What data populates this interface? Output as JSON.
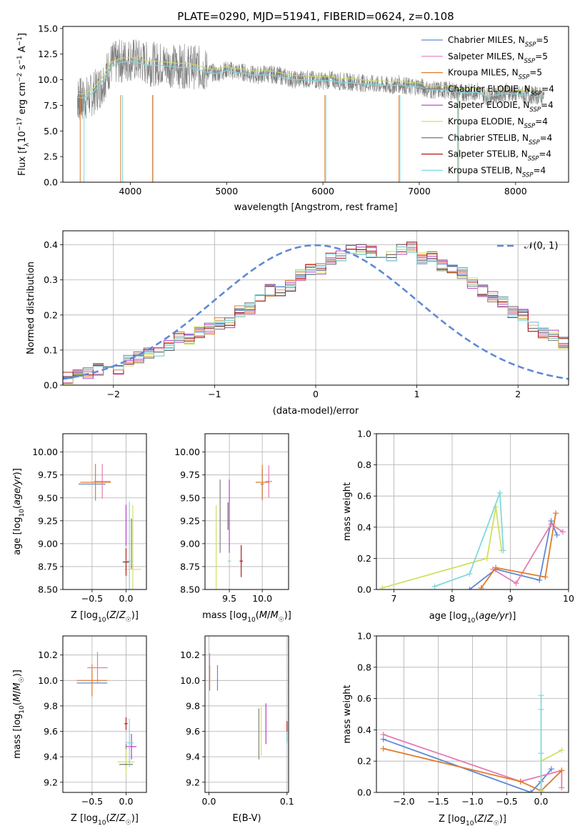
{
  "figure_title": "PLATE=0290, MJD=51941, FIBERID=0624, z=0.108",
  "colors": {
    "Chabrier MILES": "#5f89d6",
    "Salpeter MILES": "#e57bb2",
    "Kroupa MILES": "#e07b2a",
    "Chabrier ELODIE": "#808080",
    "Salpeter ELODIE": "#b53bc9",
    "Kroupa ELODIE": "#cfe060",
    "Chabrier STELIB": "#666666",
    "Salpeter STELIB": "#b01b1b",
    "Kroupa STELIB": "#7fd9dc",
    "gauss": "#5f89d6",
    "grid": "#b0b0b0",
    "spectrum_gray": "#7f7f7f"
  },
  "chart_data": [
    {
      "id": "spectrum",
      "type": "line",
      "title": "PLATE=0290, MJD=51941, FIBERID=0624, z=0.108",
      "xlabel": "wavelength [Angstrom, rest frame]",
      "ylabel": "Flux [f_λ 10^-17 erg cm^-2 s^-1 A^-1]",
      "xlim": [
        3300,
        8550
      ],
      "ylim": [
        0,
        15.2
      ],
      "xticks": [
        "4000",
        "5000",
        "6000",
        "7000",
        "8000"
      ],
      "yticks": [
        "0.0",
        "2.5",
        "5.0",
        "7.5",
        "10.0",
        "12.5",
        "15.0"
      ],
      "grid": false,
      "legend_position": "top-right",
      "data_x": [
        3450,
        3500,
        3600,
        3700,
        3800,
        3900,
        4000,
        4100,
        4200,
        4300,
        4400,
        4500,
        4600,
        4700,
        4800,
        4900,
        5000,
        5100,
        5200,
        5300,
        5400,
        5500,
        5600,
        5700,
        5800,
        5900,
        6000,
        6100,
        6200,
        6300,
        6400,
        6500,
        6600,
        6700,
        6800,
        6900,
        7000,
        7100,
        7200,
        7300,
        7400,
        7500,
        7600,
        7700,
        7800,
        7900,
        8000,
        8100,
        8200,
        8300
      ],
      "data_y": [
        8.2,
        8.0,
        8.5,
        9.5,
        11.5,
        11.8,
        12.0,
        11.8,
        11.5,
        11.6,
        11.4,
        11.3,
        11.3,
        11.2,
        10.8,
        10.6,
        11.0,
        10.8,
        10.7,
        10.4,
        10.6,
        10.5,
        10.3,
        10.0,
        10.1,
        10.0,
        9.9,
        10.0,
        9.8,
        9.8,
        9.7,
        9.6,
        9.5,
        9.4,
        9.6,
        9.3,
        9.4,
        9.0,
        9.0,
        9.0,
        8.8,
        8.7,
        8.9,
        8.4,
        8.5,
        8.8,
        8.6,
        8.5,
        8.5,
        8.4
      ],
      "model_y": [
        8.3,
        8.2,
        8.6,
        9.7,
        11.3,
        11.7,
        11.8,
        11.6,
        11.4,
        11.4,
        11.3,
        11.2,
        11.2,
        11.0,
        10.7,
        10.6,
        10.9,
        10.7,
        10.6,
        10.4,
        10.5,
        10.4,
        10.2,
        10.0,
        10.0,
        9.9,
        9.9,
        9.9,
        9.7,
        9.7,
        9.6,
        9.5,
        9.5,
        9.4,
        9.5,
        9.3,
        9.3,
        9.0,
        9.0,
        9.0,
        8.8,
        8.7,
        8.8,
        8.4,
        8.5,
        8.7,
        8.6,
        8.5,
        8.5,
        8.4
      ],
      "drop_lines_x": [
        3480,
        3520,
        3900,
        3920,
        4230,
        4240,
        6020,
        6030,
        6790,
        6800,
        7400,
        7410
      ],
      "legend": [
        {
          "label": "Chabrier MILES, N",
          "sub": "SSP",
          "suffix": "=5",
          "color_key": "Chabrier MILES"
        },
        {
          "label": "Salpeter MILES, N",
          "sub": "SSP",
          "suffix": "=5",
          "color_key": "Salpeter MILES"
        },
        {
          "label": "Kroupa MILES, N",
          "sub": "SSP",
          "suffix": "=5",
          "color_key": "Kroupa MILES"
        },
        {
          "label": "Chabrier ELODIE, N",
          "sub": "SSP",
          "suffix": "=4",
          "color_key": "Chabrier ELODIE"
        },
        {
          "label": "Salpeter ELODIE, N",
          "sub": "SSP",
          "suffix": "=4",
          "color_key": "Salpeter ELODIE"
        },
        {
          "label": "Kroupa ELODIE, N",
          "sub": "SSP",
          "suffix": "=4",
          "color_key": "Kroupa ELODIE"
        },
        {
          "label": "Chabrier STELIB, N",
          "sub": "SSP",
          "suffix": "=4",
          "color_key": "Chabrier STELIB"
        },
        {
          "label": "Salpeter STELIB, N",
          "sub": "SSP",
          "suffix": "=4",
          "color_key": "Salpeter STELIB"
        },
        {
          "label": "Kroupa STELIB, N",
          "sub": "SSP",
          "suffix": "=4",
          "color_key": "Kroupa STELIB"
        }
      ]
    },
    {
      "id": "residuals",
      "type": "line",
      "xlabel": "(data-model)/error",
      "ylabel": "Normed distribution",
      "xlim": [
        -2.5,
        2.5
      ],
      "ylim": [
        0,
        0.44
      ],
      "xticks": [
        "−2",
        "−1",
        "0",
        "1",
        "2"
      ],
      "yticks": [
        "0.0",
        "0.1",
        "0.2",
        "0.3",
        "0.4"
      ],
      "grid": true,
      "legend_position": "top-right",
      "legend_label": "𝒩(0, 1)",
      "bin_width": 0.1,
      "bin_start": -2.5,
      "histogram_values": [
        0.02,
        0.03,
        0.035,
        0.045,
        0.06,
        0.045,
        0.07,
        0.08,
        0.09,
        0.1,
        0.11,
        0.135,
        0.13,
        0.15,
        0.16,
        0.175,
        0.18,
        0.21,
        0.22,
        0.245,
        0.27,
        0.27,
        0.285,
        0.315,
        0.33,
        0.33,
        0.36,
        0.37,
        0.39,
        0.385,
        0.38,
        0.38,
        0.37,
        0.39,
        0.395,
        0.36,
        0.37,
        0.34,
        0.33,
        0.32,
        0.29,
        0.27,
        0.25,
        0.24,
        0.21,
        0.2,
        0.17,
        0.15,
        0.14,
        0.12,
        0.11,
        0.095,
        0.085,
        0.075,
        0.06,
        0.05,
        0.045,
        0.035,
        0.03,
        0.02
      ]
    },
    {
      "id": "age_vs_Z",
      "type": "scatter",
      "xlabel": "Z [log10(Z/Z☉)]",
      "ylabel": "age [log10(age/yr)]",
      "xlim": [
        -0.93,
        0.3
      ],
      "ylim": [
        8.5,
        10.2
      ],
      "xticks": [
        "−0.5",
        "0.0"
      ],
      "yticks": [
        "8.50",
        "8.75",
        "9.00",
        "9.25",
        "9.50",
        "9.75",
        "10.00"
      ],
      "grid": true,
      "points": [
        {
          "x": -0.5,
          "y": 9.65,
          "xerr": 0.4,
          "yerr": 0.0,
          "color_key": "Chabrier MILES"
        },
        {
          "x": -0.35,
          "y": 9.68,
          "xerr": 0.25,
          "yerr": 0.38,
          "color_key": "Salpeter MILES"
        },
        {
          "x": -0.45,
          "y": 9.67,
          "xerr": 0.45,
          "yerr": 0.4,
          "color_key": "Kroupa MILES"
        },
        {
          "x": 0.08,
          "y": 9.0,
          "xerr": 0.0,
          "yerr": 0.55,
          "color_key": "Chabrier ELODIE"
        },
        {
          "x": 0.0,
          "y": 9.2,
          "xerr": 0.0,
          "yerr": 0.45,
          "color_key": "Salpeter ELODIE"
        },
        {
          "x": 0.1,
          "y": 8.72,
          "xerr": 0.25,
          "yerr": 1.4,
          "color_key": "Kroupa ELODIE"
        },
        {
          "x": 0.0,
          "y": 8.8,
          "xerr": 0.1,
          "yerr": 0.0,
          "color_key": "Chabrier STELIB"
        },
        {
          "x": 0.0,
          "y": 8.8,
          "xerr": 0.08,
          "yerr": 0.3,
          "color_key": "Salpeter STELIB"
        },
        {
          "x": 0.05,
          "y": 8.81,
          "xerr": 0.1,
          "yerr": 1.3,
          "color_key": "Kroupa STELIB"
        }
      ]
    },
    {
      "id": "age_vs_mass",
      "type": "scatter",
      "xlabel": "mass [log10(M/M☉)]",
      "ylabel": "",
      "xlim": [
        9.13,
        10.4
      ],
      "ylim": [
        8.5,
        10.2
      ],
      "xticks": [
        "9.5",
        "10.0"
      ],
      "yticks": [
        "8.50",
        "8.75",
        "9.00",
        "9.25",
        "9.50",
        "9.75",
        "10.00"
      ],
      "grid": true,
      "points": [
        {
          "x": 10.0,
          "y": 9.65,
          "xerr": 0.05,
          "yerr": 0.35,
          "color_key": "Chabrier MILES"
        },
        {
          "x": 10.1,
          "y": 9.68,
          "xerr": 0.1,
          "yerr": 0.35,
          "color_key": "Salpeter MILES"
        },
        {
          "x": 10.0,
          "y": 9.67,
          "xerr": 0.2,
          "yerr": 0.38,
          "color_key": "Kroupa MILES"
        },
        {
          "x": 9.36,
          "y": 9.3,
          "xerr": 0.0,
          "yerr": 0.8,
          "color_key": "Chabrier ELODIE"
        },
        {
          "x": 9.5,
          "y": 9.3,
          "xerr": 0.0,
          "yerr": 0.8,
          "color_key": "Salpeter ELODIE"
        },
        {
          "x": 9.3,
          "y": 8.72,
          "xerr": 0.0,
          "yerr": 1.4,
          "color_key": "Kroupa ELODIE"
        },
        {
          "x": 9.48,
          "y": 9.3,
          "xerr": 0.0,
          "yerr": 0.3,
          "color_key": "Chabrier STELIB"
        },
        {
          "x": 9.68,
          "y": 8.81,
          "xerr": 0.05,
          "yerr": 0.35,
          "color_key": "Salpeter STELIB"
        },
        {
          "x": 9.5,
          "y": 8.81,
          "xerr": 0.05,
          "yerr": 0.0,
          "color_key": "Kroupa STELIB"
        }
      ]
    },
    {
      "id": "massweight_vs_age",
      "type": "line",
      "xlabel": "age [log10(age/yr)]",
      "ylabel": "mass weight",
      "xlim": [
        6.7,
        10.0
      ],
      "ylim": [
        0,
        1.0
      ],
      "xticks": [
        "7",
        "8",
        "9",
        "10"
      ],
      "yticks": [
        "0.0",
        "0.2",
        "0.4",
        "0.6",
        "0.8",
        "1.0"
      ],
      "grid": true,
      "series": [
        {
          "color_key": "Chabrier MILES",
          "x": [
            8.3,
            8.75,
            9.5,
            9.7,
            9.8
          ],
          "y": [
            0.0,
            0.13,
            0.06,
            0.44,
            0.35
          ]
        },
        {
          "color_key": "Salpeter MILES",
          "x": [
            8.7,
            9.1,
            9.7,
            9.9
          ],
          "y": [
            0.13,
            0.04,
            0.42,
            0.37
          ]
        },
        {
          "color_key": "Kroupa MILES",
          "x": [
            8.5,
            8.75,
            9.6,
            9.78
          ],
          "y": [
            0.01,
            0.14,
            0.08,
            0.49
          ]
        },
        {
          "color_key": "Kroupa ELODIE",
          "x": [
            6.8,
            8.6,
            8.75,
            8.85
          ],
          "y": [
            0.01,
            0.2,
            0.53,
            0.25
          ]
        },
        {
          "color_key": "Kroupa STELIB",
          "x": [
            7.7,
            8.3,
            8.82,
            8.88
          ],
          "y": [
            0.02,
            0.1,
            0.62,
            0.25
          ]
        }
      ]
    },
    {
      "id": "mass_vs_Z",
      "type": "scatter",
      "xlabel": "Z [log10(Z/Z☉)]",
      "ylabel": "mass [log10(M/M☉)]",
      "xlim": [
        -0.93,
        0.3
      ],
      "ylim": [
        9.12,
        10.35
      ],
      "xticks": [
        "−0.5",
        "0.0"
      ],
      "yticks": [
        "9.2",
        "9.4",
        "9.6",
        "9.8",
        "10.0",
        "10.2"
      ],
      "grid": true,
      "points": [
        {
          "x": -0.5,
          "y": 9.98,
          "xerr": 0.45,
          "yerr": 0.2,
          "color_key": "Chabrier MILES"
        },
        {
          "x": -0.42,
          "y": 10.1,
          "xerr": 0.3,
          "yerr": 0.25,
          "color_key": "Salpeter MILES"
        },
        {
          "x": -0.5,
          "y": 10.0,
          "xerr": 0.45,
          "yerr": 0.25,
          "color_key": "Kroupa MILES"
        },
        {
          "x": 0.0,
          "y": 9.4,
          "xerr": 0.0,
          "yerr": 0.2,
          "color_key": "Chabrier ELODIE"
        },
        {
          "x": 0.08,
          "y": 9.48,
          "xerr": 0.15,
          "yerr": 0.2,
          "color_key": "Salpeter ELODIE"
        },
        {
          "x": 0.0,
          "y": 9.36,
          "xerr": 0.25,
          "yerr": 0.2,
          "color_key": "Kroupa ELODIE"
        },
        {
          "x": 0.0,
          "y": 9.34,
          "xerr": 0.2,
          "yerr": 0.0,
          "color_key": "Chabrier STELIB"
        },
        {
          "x": 0.0,
          "y": 9.66,
          "xerr": 0.05,
          "yerr": 0.1,
          "color_key": "Salpeter STELIB"
        },
        {
          "x": 0.05,
          "y": 9.51,
          "xerr": 0.12,
          "yerr": 0.38,
          "color_key": "Kroupa STELIB"
        }
      ]
    },
    {
      "id": "mass_vs_EBV",
      "type": "scatter",
      "xlabel": "E(B-V)",
      "ylabel": "",
      "xlim": [
        -0.005,
        0.102
      ],
      "ylim": [
        9.12,
        10.35
      ],
      "xticks": [
        "0.0",
        "0.1"
      ],
      "yticks": [
        "9.2",
        "9.4",
        "9.6",
        "9.8",
        "10.0",
        "10.2"
      ],
      "grid": true,
      "points": [
        {
          "x": 0.011,
          "y": 10.02,
          "xerr": 0.0,
          "yerr": 0.2,
          "color_key": "Chabrier MILES"
        },
        {
          "x": 0.001,
          "y": 10.1,
          "xerr": 0.0,
          "yerr": 0.23,
          "color_key": "Salpeter MILES"
        },
        {
          "x": 0.001,
          "y": 10.02,
          "xerr": 0.0,
          "yerr": 0.2,
          "color_key": "Kroupa MILES"
        },
        {
          "x": 0.064,
          "y": 9.58,
          "xerr": 0.0,
          "yerr": 0.4,
          "color_key": "Chabrier ELODIE"
        },
        {
          "x": 0.073,
          "y": 9.66,
          "xerr": 0.0,
          "yerr": 0.32,
          "color_key": "Salpeter ELODIE"
        },
        {
          "x": 0.067,
          "y": 9.6,
          "xerr": 0.0,
          "yerr": 0.38,
          "color_key": "Kroupa ELODIE"
        },
        {
          "x": 0.1,
          "y": 9.6,
          "xerr": 0.0,
          "yerr": 0.16,
          "color_key": "Salpeter STELIB"
        },
        {
          "x": 0.1,
          "y": 9.55,
          "xerr": 0.0,
          "yerr": 0.1,
          "color_key": "Kroupa STELIB"
        }
      ]
    },
    {
      "id": "massweight_vs_Z",
      "type": "line",
      "xlabel": "Z [log10(Z/Z☉)]",
      "ylabel": "mass weight",
      "xlim": [
        -2.4,
        0.4
      ],
      "ylim": [
        0,
        1.0
      ],
      "xticks": [
        "−2.0",
        "−1.5",
        "−1.0",
        "−0.5",
        "0.0"
      ],
      "yticks": [
        "0.0",
        "0.2",
        "0.4",
        "0.6",
        "0.8",
        "1.0"
      ],
      "grid": true,
      "series": [
        {
          "color_key": "Chabrier MILES",
          "x": [
            -2.3,
            -0.15,
            0.0,
            0.15
          ],
          "y": [
            0.34,
            0.0,
            0.07,
            0.15
          ]
        },
        {
          "color_key": "Salpeter MILES",
          "x": [
            -2.3,
            -0.3,
            0.3,
            0.3
          ],
          "y": [
            0.37,
            0.07,
            0.14,
            0.03
          ]
        },
        {
          "color_key": "Kroupa MILES",
          "x": [
            -2.3,
            -0.3,
            0.0,
            0.3
          ],
          "y": [
            0.28,
            0.07,
            0.01,
            0.14
          ]
        },
        {
          "color_key": "Kroupa ELODIE",
          "x": [
            0.0,
            0.0,
            0.3
          ],
          "y": [
            0.01,
            0.2,
            0.27
          ]
        },
        {
          "color_key": "Kroupa STELIB",
          "x": [
            0.0,
            0.0,
            0.0,
            0.0
          ],
          "y": [
            0.02,
            0.25,
            0.53,
            0.62
          ]
        }
      ]
    }
  ]
}
